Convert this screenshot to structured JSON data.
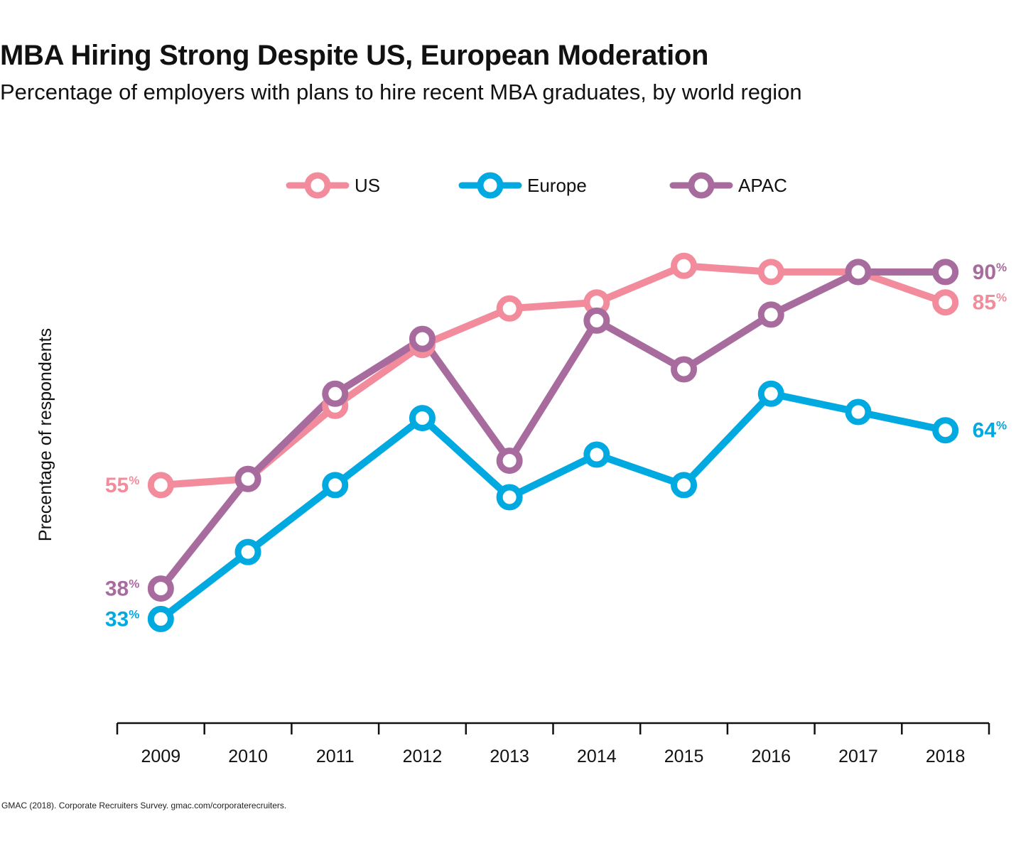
{
  "title": "MBA Hiring Strong Despite US, European Moderation",
  "subtitle": "Percentage of employers with plans to hire recent MBA graduates, by world region",
  "source": "GMAC (2018). Corporate Recruiters Survey. gmac.com/corporaterecruiters.",
  "chart_data": {
    "type": "line",
    "title": "MBA Hiring Strong Despite US, European Moderation",
    "subtitle": "Percentage of employers with plans to hire recent MBA graduates, by world region",
    "xlabel": "",
    "ylabel": "Precentage of respondents",
    "x": [
      "2009",
      "2010",
      "2011",
      "2012",
      "2013",
      "2014",
      "2015",
      "2016",
      "2017",
      "2018"
    ],
    "ylim": [
      25,
      95
    ],
    "grid": false,
    "legend_position": "top-center",
    "series": [
      {
        "name": "US",
        "color": "#f28c9c",
        "values": [
          55,
          56,
          68,
          78,
          84,
          85,
          91,
          90,
          90,
          85
        ],
        "start_label": "55",
        "end_label": "85",
        "unit": "%"
      },
      {
        "name": "Europe",
        "color": "#00a9e0",
        "values": [
          33,
          44,
          55,
          66,
          53,
          60,
          55,
          70,
          67,
          64
        ],
        "start_label": "33",
        "end_label": "64",
        "unit": "%"
      },
      {
        "name": "APAC",
        "color": "#a86b9e",
        "values": [
          38,
          56,
          70,
          79,
          59,
          82,
          74,
          83,
          90,
          90
        ],
        "start_label": "38",
        "end_label": "90",
        "unit": "%"
      }
    ]
  }
}
